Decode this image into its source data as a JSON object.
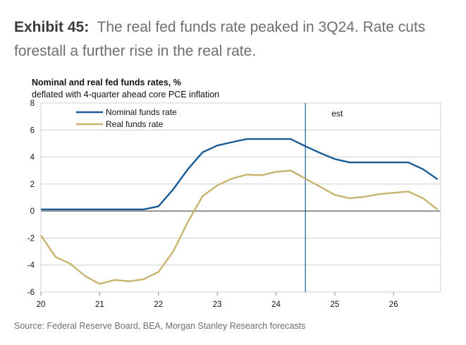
{
  "header": {
    "exhibit": "Exhibit 45:",
    "title": "The real fed funds rate peaked in 3Q24. Rate cuts forestall a further rise in the real rate."
  },
  "chart_data": {
    "type": "line",
    "title": "Nominal and real fed funds rates, %",
    "subtitle": "deflated with 4-quarter ahead core PCE inflation",
    "x_tick_labels": [
      "20",
      "21",
      "22",
      "23",
      "24",
      "25",
      "26"
    ],
    "x_tick_values": [
      2020,
      2021,
      2022,
      2023,
      2024,
      2025,
      2026
    ],
    "xlim": [
      2020,
      2026.8
    ],
    "ylim": [
      -6,
      8
    ],
    "y_ticks": [
      -6,
      -4,
      -2,
      0,
      2,
      4,
      6,
      8
    ],
    "grid": true,
    "legend": "top-left",
    "annotation": {
      "label": "est",
      "x": 2024.5
    },
    "x": [
      2020.0,
      2020.25,
      2020.5,
      2020.75,
      2021.0,
      2021.25,
      2021.5,
      2021.75,
      2022.0,
      2022.25,
      2022.5,
      2022.75,
      2023.0,
      2023.25,
      2023.5,
      2023.75,
      2024.0,
      2024.25,
      2024.5,
      2024.75,
      2025.0,
      2025.25,
      2025.5,
      2025.75,
      2026.0,
      2026.25,
      2026.5,
      2026.75
    ],
    "series": [
      {
        "name": "Nominal funds rate",
        "color": "#1a5a96",
        "values": [
          0.12,
          0.12,
          0.12,
          0.12,
          0.12,
          0.12,
          0.12,
          0.12,
          0.35,
          1.6,
          3.1,
          4.35,
          4.85,
          5.1,
          5.33,
          5.33,
          5.33,
          5.33,
          4.8,
          4.3,
          3.85,
          3.6,
          3.6,
          3.6,
          3.6,
          3.6,
          3.1,
          2.35
        ]
      },
      {
        "name": "Real funds rate",
        "color": "#c8b46e",
        "values": [
          -1.8,
          -3.4,
          -3.9,
          -4.8,
          -5.4,
          -5.1,
          -5.2,
          -5.05,
          -4.5,
          -3.0,
          -0.8,
          1.1,
          1.9,
          2.4,
          2.7,
          2.65,
          2.9,
          3.0,
          2.4,
          1.8,
          1.2,
          0.95,
          1.05,
          1.25,
          1.35,
          1.45,
          0.95,
          0.1
        ]
      }
    ]
  },
  "source": "Source: Federal Reserve Board, BEA, Morgan Stanley Research forecasts"
}
